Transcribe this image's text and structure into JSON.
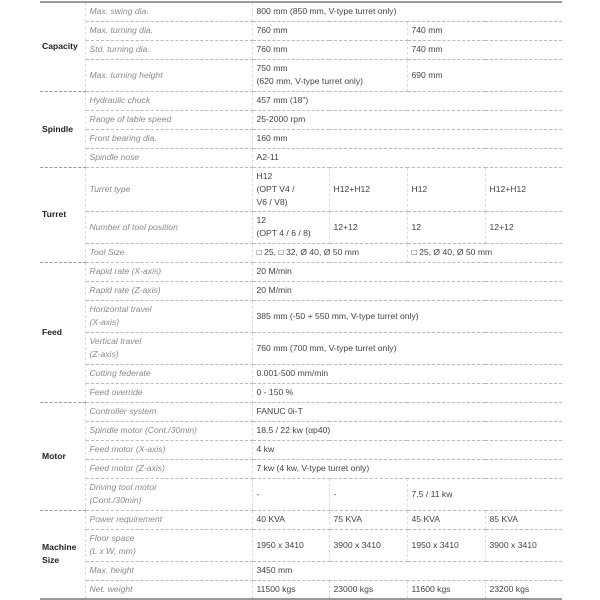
{
  "sections": [
    {
      "category": "Capacity",
      "rows": [
        {
          "label": "Max. swing dia.",
          "cells": [
            {
              "text": "800 mm (850 mm, V-type turret only)",
              "span": 4
            }
          ]
        },
        {
          "label": "Max. turning dia.",
          "cells": [
            {
              "text": "760 mm",
              "span": 2
            },
            {
              "text": "740 mm",
              "span": 2
            }
          ]
        },
        {
          "label": "Std. turning dia.",
          "cells": [
            {
              "text": "760 mm",
              "span": 2
            },
            {
              "text": "740 mm",
              "span": 2
            }
          ]
        },
        {
          "label": "Max. turning height",
          "tall": true,
          "cells": [
            {
              "text": "750 mm\n(620 mm, V-type turret only)",
              "span": 2
            },
            {
              "text": "690 mm",
              "span": 2
            }
          ]
        }
      ]
    },
    {
      "category": "Spindle",
      "rows": [
        {
          "label": "Hydraulic chuck",
          "cells": [
            {
              "text": "457 mm (18\")",
              "span": 4
            }
          ]
        },
        {
          "label": "Range of table speed",
          "cells": [
            {
              "text": "25-2000 rpm",
              "span": 4
            }
          ]
        },
        {
          "label": "Front bearing dia.",
          "cells": [
            {
              "text": "160 mm",
              "span": 4
            }
          ]
        },
        {
          "label": "Spindle nose",
          "cells": [
            {
              "text": "A2-11",
              "span": 4
            }
          ]
        }
      ]
    },
    {
      "category": "Turret",
      "rows": [
        {
          "label": "Turret type",
          "h": 44,
          "cells": [
            {
              "text": "H12\n(OPT V4 /\nV6 / V8)",
              "span": 1
            },
            {
              "text": "H12+H12",
              "span": 1
            },
            {
              "text": "H12",
              "span": 1
            },
            {
              "text": "H12+H12",
              "span": 1
            }
          ]
        },
        {
          "label": "Number of tool position",
          "tall": true,
          "cells": [
            {
              "text": "12\n(OPT 4 / 6 / 8)",
              "span": 1
            },
            {
              "text": "12+12",
              "span": 1
            },
            {
              "text": "12",
              "span": 1
            },
            {
              "text": "12+12",
              "span": 1
            }
          ]
        },
        {
          "label": "Tool Size",
          "cells": [
            {
              "text": "□ 25, □ 32, Ø 40, Ø 50 mm",
              "span": 2
            },
            {
              "text": "□ 25, Ø 40, Ø 50 mm",
              "span": 2
            }
          ]
        }
      ]
    },
    {
      "category": "Feed",
      "rows": [
        {
          "label": "Rapid rate (X-axis)",
          "cells": [
            {
              "text": "20 M/min",
              "span": 4
            }
          ]
        },
        {
          "label": "Rapid rate (Z-axis)",
          "cells": [
            {
              "text": "20 M/min",
              "span": 4
            }
          ]
        },
        {
          "label": "Horizontal travel\n(X-axis)",
          "tall": true,
          "cells": [
            {
              "text": "385 mm (-50 + 550 mm, V-type turret only)",
              "span": 4
            }
          ]
        },
        {
          "label": "Vertical travel\n(Z-axis)",
          "tall": true,
          "cells": [
            {
              "text": "760 mm (700 mm, V-type turret only)",
              "span": 4
            }
          ]
        },
        {
          "label": "Cutting federate",
          "cells": [
            {
              "text": "0.001-500 mm/min",
              "span": 4
            }
          ]
        },
        {
          "label": "Feed override",
          "cells": [
            {
              "text": "0 - 150 %",
              "span": 4
            }
          ]
        }
      ]
    },
    {
      "category": "Motor",
      "rows": [
        {
          "label": "Controller system",
          "cells": [
            {
              "text": "FANUC 0i-T",
              "span": 4
            }
          ]
        },
        {
          "label": "Spindle motor (Cont./30min)",
          "cells": [
            {
              "text": "18.5 / 22 kw (αp40)",
              "span": 4
            }
          ]
        },
        {
          "label": "Feed motor (X-axis)",
          "cells": [
            {
              "text": "4 kw",
              "span": 4
            }
          ]
        },
        {
          "label": "Feed motor (Z-axis)",
          "cells": [
            {
              "text": "7 kw (4 kw, V-type turret only)",
              "span": 4
            }
          ]
        },
        {
          "label": "Driving tool motor\n(Cont./30min)",
          "tall": true,
          "cells": [
            {
              "text": "-",
              "span": 1
            },
            {
              "text": "-",
              "span": 1
            },
            {
              "text": "7.5 / 11 kw",
              "span": 2
            }
          ]
        }
      ]
    },
    {
      "category": "Machine\nSize",
      "rows": [
        {
          "label": "Power requirement",
          "cells": [
            {
              "text": "40 KVA",
              "span": 1
            },
            {
              "text": "75 KVA",
              "span": 1
            },
            {
              "text": "45 KVA",
              "span": 1
            },
            {
              "text": "85 KVA",
              "span": 1
            }
          ]
        },
        {
          "label": "Floor space\n(L x W, mm)",
          "tall": true,
          "cells": [
            {
              "text": "1950 x 3410",
              "span": 1
            },
            {
              "text": "3900 x 3410",
              "span": 1
            },
            {
              "text": "1950 x 3410",
              "span": 1
            },
            {
              "text": "3900 x 3410",
              "span": 1
            }
          ]
        },
        {
          "label": "Max. height",
          "cells": [
            {
              "text": "3450 mm",
              "span": 4
            }
          ]
        },
        {
          "label": "Net. weight",
          "cells": [
            {
              "text": "11500 kgs",
              "span": 1
            },
            {
              "text": "23000 kgs",
              "span": 1
            },
            {
              "text": "11600 kgs",
              "span": 1
            },
            {
              "text": "23200 kgs",
              "span": 1
            }
          ]
        }
      ]
    }
  ]
}
